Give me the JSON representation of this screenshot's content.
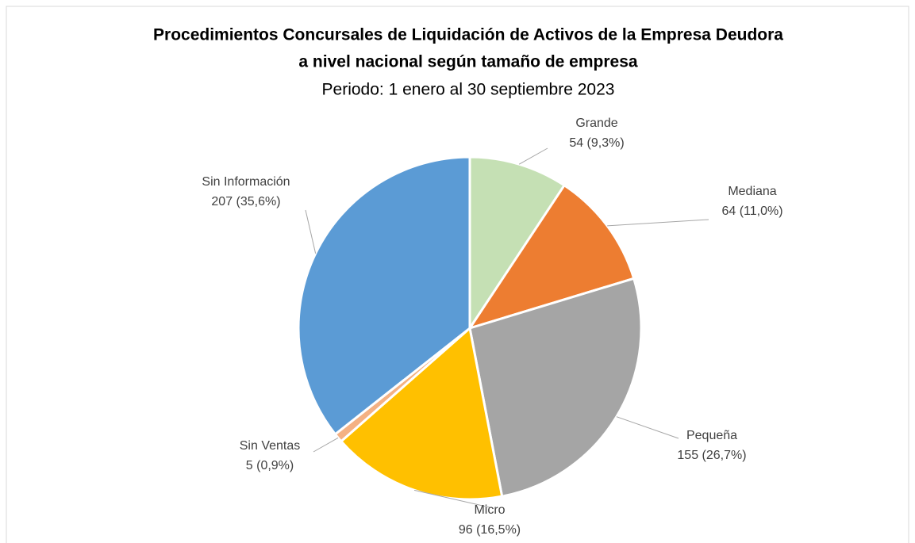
{
  "chart_data": {
    "type": "pie",
    "title": [
      "Procedimientos Concursales de Liquidación de Activos de la Empresa Deudora",
      "a nivel nacional según tamaño de empresa"
    ],
    "subtitle": "Periodo: 1 enero al 30 septiembre 2023",
    "categories": [
      "Grande",
      "Mediana",
      "Pequeña",
      "Micro",
      "Sin Ventas",
      "Sin Información"
    ],
    "values": [
      54,
      64,
      155,
      96,
      5,
      207
    ],
    "value_labels": [
      "54 (9,3%)",
      "64 (11,0%)",
      "155 (26,7%)",
      "96 (16,5%)",
      "5 (0,9%)",
      "207 (35,6%)"
    ],
    "colors": [
      "#c5e0b4",
      "#ed7d31",
      "#a5a5a5",
      "#ffc000",
      "#f4b183",
      "#5b9bd5"
    ]
  }
}
